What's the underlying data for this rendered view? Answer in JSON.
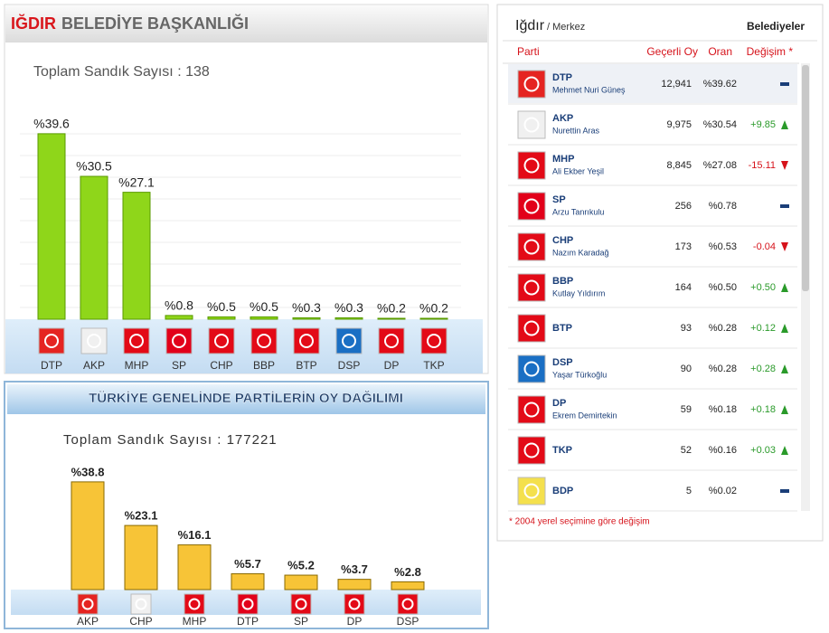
{
  "chart_data": [
    {
      "type": "bar",
      "title_parts": [
        "IĞDIR",
        "BELEDİYE BAŞKANLIĞI"
      ],
      "subtitle": "Toplam Sandık Sayısı : 138",
      "categories": [
        "DTP",
        "AKP",
        "MHP",
        "SP",
        "CHP",
        "BBP",
        "BTP",
        "DSP",
        "DP",
        "TKP"
      ],
      "values": [
        39.6,
        30.5,
        27.1,
        0.8,
        0.5,
        0.5,
        0.3,
        0.3,
        0.2,
        0.2
      ],
      "value_labels": [
        "%39.6",
        "%30.5",
        "%27.1",
        "%0.8",
        "%0.5",
        "%0.5",
        "%0.3",
        "%0.3",
        "%0.2",
        "%0.2"
      ],
      "color": "#8fd61a"
    },
    {
      "type": "bar",
      "title": "TÜRKİYE GENELİNDE PARTİLERİN OY DAĞILIMI",
      "subtitle": "Toplam Sandık Sayısı : 177221",
      "categories": [
        "AKP",
        "CHP",
        "MHP",
        "DTP",
        "SP",
        "DP",
        "DSP"
      ],
      "values": [
        38.8,
        23.1,
        16.1,
        5.7,
        5.2,
        3.7,
        2.8
      ],
      "value_labels": [
        "%38.8",
        "%23.1",
        "%16.1",
        "%5.7",
        "%5.2",
        "%3.7",
        "%2.8"
      ],
      "color": "#f7c437"
    }
  ],
  "table": {
    "title": "Iğdır",
    "subtitle": "/ Merkez",
    "tab": "Belediyeler",
    "columns": [
      "Parti",
      "Geçerli Oy",
      "Oran",
      "Değişim *"
    ],
    "rows": [
      {
        "party": "DTP",
        "candidate": "Mehmet Nuri Güneş",
        "votes": "12,941",
        "share": "%39.62"
      },
      {
        "party": "AKP",
        "candidate": "Nurettin Aras",
        "votes": "9,975",
        "share": "%30.54",
        "change": "+9.85"
      },
      {
        "party": "MHP",
        "candidate": "Ali Ekber Yeşil",
        "votes": "8,845",
        "share": "%27.08",
        "change": "-15.11"
      },
      {
        "party": "SP",
        "candidate": "Arzu Tanrıkulu",
        "votes": "256",
        "share": "%0.78"
      },
      {
        "party": "CHP",
        "candidate": "Nazım Karadağ",
        "votes": "173",
        "share": "%0.53",
        "change": "-0.04"
      },
      {
        "party": "BBP",
        "candidate": "Kutlay Yıldırım",
        "votes": "164",
        "share": "%0.50",
        "change": "+0.50"
      },
      {
        "party": "BTP",
        "votes": "93",
        "share": "%0.28",
        "change": "+0.12"
      },
      {
        "party": "DSP",
        "candidate": "Yaşar Türkoğlu",
        "votes": "90",
        "share": "%0.28",
        "change": "+0.28"
      },
      {
        "party": "DP",
        "candidate": "Ekrem Demirtekin",
        "votes": "59",
        "share": "%0.18",
        "change": "+0.18"
      },
      {
        "party": "TKP",
        "votes": "52",
        "share": "%0.16",
        "change": "+0.03"
      },
      {
        "party": "BDP",
        "votes": "5",
        "share": "%0.02"
      }
    ],
    "footnote": "* 2004 yerel seçimine göre değişim"
  }
}
